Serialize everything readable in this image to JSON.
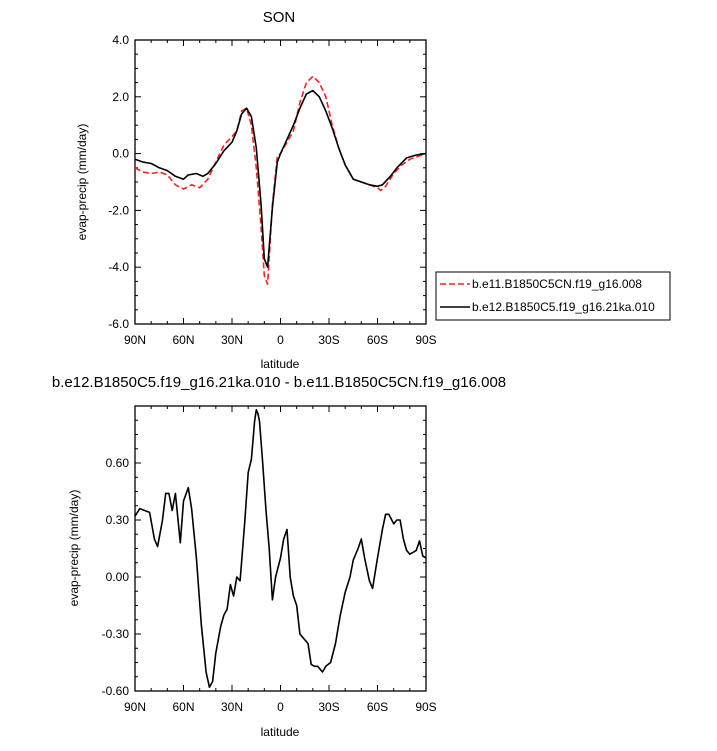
{
  "chart_data": [
    {
      "type": "line",
      "title": "SON",
      "xlabel": "latitude",
      "ylabel": "evap-precip (mm/day)",
      "xlim": [
        90,
        -90
      ],
      "ylim": [
        -6,
        4
      ],
      "x_ticks": [
        90,
        60,
        30,
        0,
        -30,
        -60,
        -90
      ],
      "x_tick_labels": [
        "90N",
        "60N",
        "30N",
        "0",
        "30S",
        "60S",
        "90S"
      ],
      "y_ticks": [
        -6,
        -4,
        -2,
        0,
        2,
        4
      ],
      "y_tick_labels": [
        "-6.0",
        "-4.0",
        "-2.0",
        "0.0",
        "2.0",
        "4.0"
      ],
      "legend_position": "right",
      "series": [
        {
          "name": "b.e11.B1850C5CN.f19_g16.008",
          "color": "#ff2020",
          "dash": "dashed",
          "points": [
            [
              90,
              -0.5
            ],
            [
              85,
              -0.65
            ],
            [
              80,
              -0.7
            ],
            [
              75,
              -0.65
            ],
            [
              70,
              -0.75
            ],
            [
              65,
              -1.1
            ],
            [
              60,
              -1.25
            ],
            [
              55,
              -1.1
            ],
            [
              50,
              -1.2
            ],
            [
              45,
              -0.9
            ],
            [
              40,
              -0.3
            ],
            [
              35,
              0.3
            ],
            [
              30,
              0.6
            ],
            [
              27,
              0.8
            ],
            [
              24,
              1.5
            ],
            [
              21,
              1.6
            ],
            [
              18,
              1.0
            ],
            [
              15,
              -0.5
            ],
            [
              12,
              -2.6
            ],
            [
              10,
              -4.3
            ],
            [
              8,
              -4.6
            ],
            [
              5,
              -1.8
            ],
            [
              2,
              -0.1
            ],
            [
              0,
              0.0
            ],
            [
              -4,
              0.4
            ],
            [
              -8,
              0.8
            ],
            [
              -12,
              1.8
            ],
            [
              -16,
              2.5
            ],
            [
              -20,
              2.72
            ],
            [
              -24,
              2.5
            ],
            [
              -28,
              2.0
            ],
            [
              -32,
              1.0
            ],
            [
              -36,
              0.2
            ],
            [
              -40,
              -0.4
            ],
            [
              -45,
              -0.9
            ],
            [
              -50,
              -1.0
            ],
            [
              -55,
              -1.1
            ],
            [
              -60,
              -1.2
            ],
            [
              -62,
              -1.3
            ],
            [
              -65,
              -1.15
            ],
            [
              -70,
              -0.7
            ],
            [
              -75,
              -0.4
            ],
            [
              -80,
              -0.2
            ],
            [
              -85,
              -0.1
            ],
            [
              -90,
              0.0
            ]
          ]
        },
        {
          "name": "b.e12.B1850C5.f19_g16.21ka.010",
          "color": "#000000",
          "dash": "solid",
          "points": [
            [
              90,
              -0.2
            ],
            [
              85,
              -0.3
            ],
            [
              80,
              -0.35
            ],
            [
              75,
              -0.5
            ],
            [
              70,
              -0.6
            ],
            [
              65,
              -0.8
            ],
            [
              60,
              -0.9
            ],
            [
              57,
              -0.75
            ],
            [
              52,
              -0.7
            ],
            [
              48,
              -0.8
            ],
            [
              45,
              -0.7
            ],
            [
              40,
              -0.35
            ],
            [
              35,
              0.1
            ],
            [
              30,
              0.4
            ],
            [
              27,
              0.8
            ],
            [
              24,
              1.4
            ],
            [
              21,
              1.6
            ],
            [
              18,
              1.3
            ],
            [
              15,
              0.2
            ],
            [
              12,
              -1.8
            ],
            [
              10,
              -3.7
            ],
            [
              8,
              -4.0
            ],
            [
              5,
              -1.9
            ],
            [
              2,
              -0.3
            ],
            [
              0,
              0.0
            ],
            [
              -4,
              0.5
            ],
            [
              -8,
              1.0
            ],
            [
              -12,
              1.6
            ],
            [
              -16,
              2.1
            ],
            [
              -20,
              2.22
            ],
            [
              -24,
              2.0
            ],
            [
              -28,
              1.5
            ],
            [
              -32,
              0.9
            ],
            [
              -36,
              0.2
            ],
            [
              -40,
              -0.4
            ],
            [
              -45,
              -0.9
            ],
            [
              -50,
              -1.0
            ],
            [
              -55,
              -1.1
            ],
            [
              -60,
              -1.15
            ],
            [
              -63,
              -1.1
            ],
            [
              -68,
              -0.8
            ],
            [
              -72,
              -0.5
            ],
            [
              -78,
              -0.15
            ],
            [
              -84,
              -0.05
            ],
            [
              -90,
              0.0
            ]
          ]
        }
      ]
    },
    {
      "type": "line",
      "title": "b.e12.B1850C5.f19_g16.21ka.010 - b.e11.B1850C5CN.f19_g16.008",
      "xlabel": "latitude",
      "ylabel": "evap-precip (mm/day)",
      "xlim": [
        90,
        -90
      ],
      "ylim": [
        -0.6,
        0.9
      ],
      "x_ticks": [
        90,
        60,
        30,
        0,
        -30,
        -60,
        -90
      ],
      "x_tick_labels": [
        "90N",
        "60N",
        "30N",
        "0",
        "30S",
        "60S",
        "90S"
      ],
      "y_ticks": [
        -0.6,
        -0.3,
        0.0,
        0.3,
        0.6
      ],
      "y_tick_labels": [
        "-0.60",
        "-0.30",
        "0.00",
        "0.30",
        "0.60"
      ],
      "series": [
        {
          "color": "#000000",
          "dash": "solid",
          "points": [
            [
              90,
              0.32
            ],
            [
              87,
              0.36
            ],
            [
              84,
              0.35
            ],
            [
              81,
              0.34
            ],
            [
              78,
              0.2
            ],
            [
              76,
              0.16
            ],
            [
              73,
              0.3
            ],
            [
              71,
              0.44
            ],
            [
              69,
              0.44
            ],
            [
              67,
              0.35
            ],
            [
              65,
              0.44
            ],
            [
              62,
              0.18
            ],
            [
              60,
              0.4
            ],
            [
              57,
              0.47
            ],
            [
              55,
              0.36
            ],
            [
              52,
              0.1
            ],
            [
              49,
              -0.25
            ],
            [
              46,
              -0.5
            ],
            [
              44,
              -0.58
            ],
            [
              42,
              -0.55
            ],
            [
              40,
              -0.4
            ],
            [
              37,
              -0.26
            ],
            [
              35,
              -0.2
            ],
            [
              33,
              -0.17
            ],
            [
              31,
              -0.04
            ],
            [
              29,
              -0.1
            ],
            [
              27,
              0.0
            ],
            [
              25,
              -0.02
            ],
            [
              22,
              0.3
            ],
            [
              20,
              0.55
            ],
            [
              18,
              0.62
            ],
            [
              16,
              0.82
            ],
            [
              15,
              0.88
            ],
            [
              14,
              0.86
            ],
            [
              13,
              0.82
            ],
            [
              11,
              0.6
            ],
            [
              9,
              0.35
            ],
            [
              7,
              0.15
            ],
            [
              5,
              -0.12
            ],
            [
              3,
              0.0
            ],
            [
              0,
              0.1
            ],
            [
              -2,
              0.2
            ],
            [
              -4,
              0.25
            ],
            [
              -6,
              0.0
            ],
            [
              -8,
              -0.1
            ],
            [
              -10,
              -0.15
            ],
            [
              -12,
              -0.3
            ],
            [
              -14,
              -0.32
            ],
            [
              -17,
              -0.35
            ],
            [
              -19,
              -0.46
            ],
            [
              -21,
              -0.47
            ],
            [
              -23,
              -0.47
            ],
            [
              -26,
              -0.5
            ],
            [
              -28,
              -0.47
            ],
            [
              -31,
              -0.45
            ],
            [
              -34,
              -0.35
            ],
            [
              -37,
              -0.2
            ],
            [
              -40,
              -0.08
            ],
            [
              -43,
              0.0
            ],
            [
              -45,
              0.09
            ],
            [
              -48,
              0.15
            ],
            [
              -50,
              0.2
            ],
            [
              -52,
              0.1
            ],
            [
              -55,
              -0.02
            ],
            [
              -57,
              -0.06
            ],
            [
              -60,
              0.1
            ],
            [
              -63,
              0.25
            ],
            [
              -65,
              0.33
            ],
            [
              -67,
              0.33
            ],
            [
              -70,
              0.28
            ],
            [
              -72,
              0.3
            ],
            [
              -74,
              0.3
            ],
            [
              -76,
              0.2
            ],
            [
              -78,
              0.14
            ],
            [
              -80,
              0.12
            ],
            [
              -82,
              0.13
            ],
            [
              -84,
              0.14
            ],
            [
              -86,
              0.19
            ],
            [
              -88,
              0.11
            ],
            [
              -90,
              0.1
            ]
          ]
        }
      ]
    }
  ]
}
